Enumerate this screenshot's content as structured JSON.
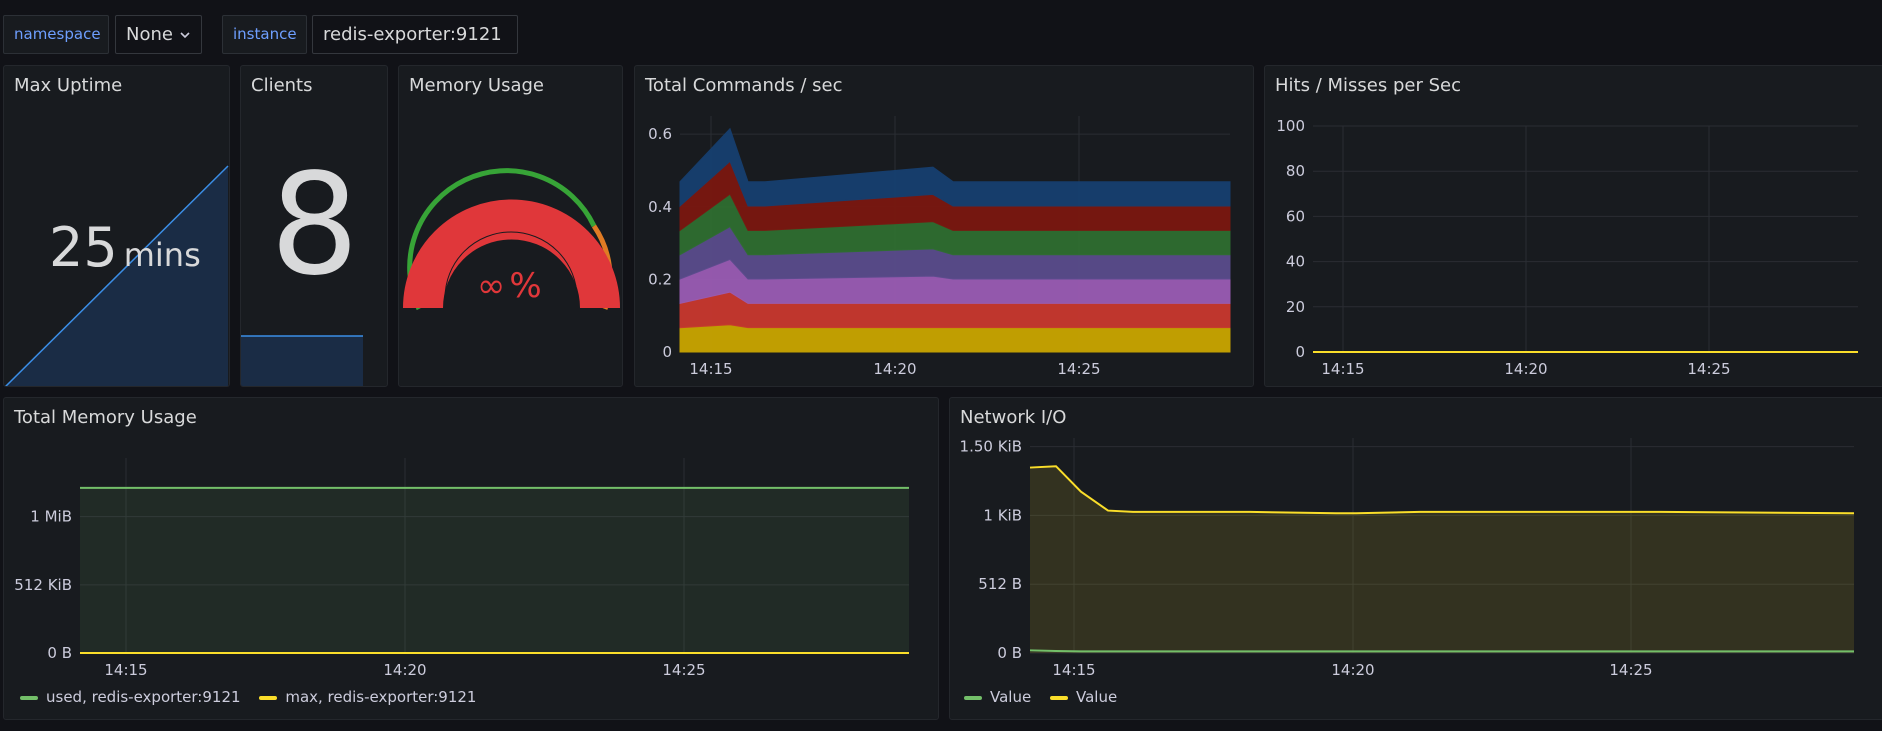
{
  "variables": [
    {
      "label": "namespace",
      "value": "None"
    },
    {
      "label": "instance",
      "value": "redis-exporter:9121"
    }
  ],
  "panels": {
    "uptime": {
      "title": "Max Uptime",
      "value": "25",
      "unit": "mins"
    },
    "clients": {
      "title": "Clients",
      "value": "8"
    },
    "memory_usage": {
      "title": "Memory Usage",
      "value": "∞",
      "unit": "%"
    },
    "commands": {
      "title": "Total Commands / sec"
    },
    "hits": {
      "title": "Hits / Misses per Sec"
    },
    "total_memory": {
      "title": "Total Memory Usage",
      "legend": [
        "used, redis-exporter:9121",
        "max, redis-exporter:9121"
      ]
    },
    "network": {
      "title": "Network I/O",
      "legend": [
        "Value",
        "Value"
      ]
    }
  },
  "colors": {
    "green": "#73bf69",
    "yellow": "#fade2a",
    "red": "#e02f44",
    "blue": "#1f60c4"
  },
  "chart_data": [
    {
      "type": "area",
      "title": "Total Commands / sec",
      "stacked": true,
      "x": [
        "14:15",
        "14:16",
        "14:17",
        "14:20",
        "14:21",
        "14:22",
        "14:25",
        "14:29"
      ],
      "x_ticks": [
        "14:15",
        "14:20",
        "14:25"
      ],
      "y_ticks": [
        "0",
        "0.2",
        "0.4",
        "0.6"
      ],
      "ylim": [
        0,
        0.65
      ],
      "series": [
        {
          "color": "#c9a600",
          "values": [
            0.067,
            0.075,
            0.067,
            0.067,
            0.067,
            0.067,
            0.067,
            0.067
          ]
        },
        {
          "color": "#c8382e",
          "values": [
            0.067,
            0.09,
            0.067,
            0.067,
            0.067,
            0.067,
            0.067,
            0.067
          ]
        },
        {
          "color": "#9a5cb4",
          "values": [
            0.067,
            0.09,
            0.067,
            0.067,
            0.075,
            0.067,
            0.067,
            0.067
          ]
        },
        {
          "color": "#5a4c8c",
          "values": [
            0.067,
            0.09,
            0.067,
            0.067,
            0.075,
            0.067,
            0.067,
            0.067
          ]
        },
        {
          "color": "#2f6e30",
          "values": [
            0.067,
            0.09,
            0.067,
            0.067,
            0.075,
            0.067,
            0.067,
            0.067
          ]
        },
        {
          "color": "#7a1710",
          "values": [
            0.067,
            0.09,
            0.067,
            0.067,
            0.075,
            0.067,
            0.067,
            0.067
          ]
        },
        {
          "color": "#163f70",
          "values": [
            0.067,
            0.09,
            0.067,
            0.067,
            0.075,
            0.067,
            0.067,
            0.067
          ]
        }
      ]
    },
    {
      "type": "line",
      "title": "Hits / Misses per Sec",
      "x_ticks": [
        "14:15",
        "14:20",
        "14:25"
      ],
      "y_ticks": [
        "0",
        "20",
        "40",
        "60",
        "80",
        "100"
      ],
      "ylim": [
        0,
        100
      ],
      "series": [
        {
          "color": "#fade2a",
          "values": [
            0,
            0,
            0,
            0,
            0,
            0,
            0,
            0
          ]
        }
      ]
    },
    {
      "type": "line",
      "title": "Total Memory Usage",
      "x_ticks": [
        "14:15",
        "14:20",
        "14:25"
      ],
      "y_ticks": [
        "0 B",
        "512 KiB",
        "1 MiB"
      ],
      "ylim_bytes": [
        0,
        1500000
      ],
      "series": [
        {
          "name": "used, redis-exporter:9121",
          "color": "#73bf69",
          "values": [
            1270000,
            1270000,
            1270000,
            1270000
          ]
        },
        {
          "name": "max, redis-exporter:9121",
          "color": "#fade2a",
          "values": [
            0,
            0,
            0,
            0
          ]
        }
      ]
    },
    {
      "type": "line",
      "title": "Network I/O",
      "x_ticks": [
        "14:15",
        "14:20",
        "14:25"
      ],
      "y_ticks": [
        "0 B",
        "512 B",
        "1 KiB",
        "1.50 KiB"
      ],
      "ylim_bytes": [
        0,
        1600
      ],
      "series": [
        {
          "name": "Value",
          "color": "#73bf69",
          "values": [
            20,
            15,
            12,
            12,
            12,
            12,
            12,
            12,
            12,
            12,
            12
          ]
        },
        {
          "name": "Value",
          "color": "#fade2a",
          "values": [
            1380,
            1390,
            1200,
            1060,
            1050,
            1050,
            1040,
            1040,
            1050,
            1050,
            1040
          ]
        }
      ]
    }
  ]
}
